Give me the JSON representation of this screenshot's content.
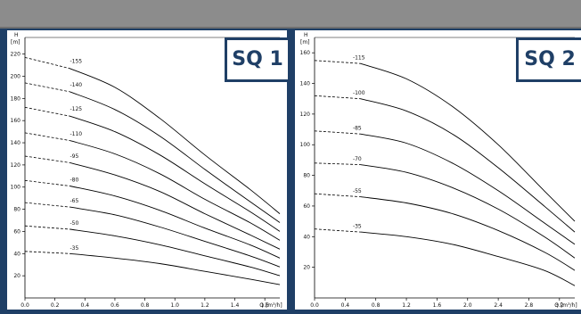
{
  "colors": {
    "header": "#8c8c8c",
    "frame": "#1f3f66",
    "badge_border": "#1f3f66",
    "curve": "#000000"
  },
  "chart_data": [
    {
      "type": "line",
      "title": "SQ 1",
      "ylabel_symbol": "H",
      "ylabel_unit": "[m]",
      "xlabel": "Q [m³/h]",
      "xlim": [
        0.0,
        1.7
      ],
      "ylim": [
        0,
        235
      ],
      "xticks": [
        "0.0",
        "0.2",
        "0.4",
        "0.6",
        "0.8",
        "1.0",
        "1.2",
        "1.4",
        "1.6"
      ],
      "yticks": [
        "20",
        "40",
        "60",
        "80",
        "100",
        "120",
        "140",
        "160",
        "180",
        "200",
        "220"
      ],
      "series": [
        {
          "name": "-155",
          "x": [
            0.0,
            0.3,
            0.6,
            0.9,
            1.2,
            1.5,
            1.7
          ],
          "y": [
            217,
            207,
            190,
            162,
            129,
            98,
            76
          ]
        },
        {
          "name": "-140",
          "x": [
            0.0,
            0.3,
            0.6,
            0.9,
            1.2,
            1.5,
            1.7
          ],
          "y": [
            194,
            186,
            170,
            146,
            116,
            87,
            68
          ]
        },
        {
          "name": "-125",
          "x": [
            0.0,
            0.3,
            0.6,
            0.9,
            1.2,
            1.5,
            1.7
          ],
          "y": [
            172,
            164,
            150,
            129,
            103,
            78,
            60
          ]
        },
        {
          "name": "-110",
          "x": [
            0.0,
            0.3,
            0.6,
            0.9,
            1.2,
            1.5,
            1.7
          ],
          "y": [
            149,
            142,
            130,
            112,
            89,
            68,
            52
          ]
        },
        {
          "name": "-95",
          "x": [
            0.0,
            0.3,
            0.6,
            0.9,
            1.2,
            1.5,
            1.7
          ],
          "y": [
            128,
            122,
            111,
            96,
            76,
            57,
            44
          ]
        },
        {
          "name": "-80",
          "x": [
            0.0,
            0.3,
            0.6,
            0.9,
            1.2,
            1.5,
            1.7
          ],
          "y": [
            106,
            101,
            92,
            79,
            63,
            48,
            36
          ]
        },
        {
          "name": "-65",
          "x": [
            0.0,
            0.3,
            0.6,
            0.9,
            1.2,
            1.5,
            1.7
          ],
          "y": [
            86,
            82,
            75,
            64,
            51,
            38,
            28
          ]
        },
        {
          "name": "-50",
          "x": [
            0.0,
            0.3,
            0.6,
            0.9,
            1.2,
            1.5,
            1.7
          ],
          "y": [
            65,
            62,
            56,
            48,
            38,
            28,
            20
          ]
        },
        {
          "name": "-35",
          "x": [
            0.0,
            0.3,
            0.6,
            0.9,
            1.2,
            1.5,
            1.7
          ],
          "y": [
            42,
            40,
            36,
            31,
            24,
            17,
            12
          ]
        }
      ]
    },
    {
      "type": "line",
      "title": "SQ 2",
      "ylabel_symbol": "H",
      "ylabel_unit": "[m]",
      "xlabel": "Q [m³/h]",
      "xlim": [
        0.0,
        3.4
      ],
      "ylim": [
        0,
        170
      ],
      "xticks": [
        "0.0",
        "0.4",
        "0.8",
        "1.2",
        "1.6",
        "2.0",
        "2.4",
        "2.8",
        "3.2"
      ],
      "yticks": [
        "20",
        "40",
        "60",
        "80",
        "100",
        "120",
        "140",
        "160"
      ],
      "series": [
        {
          "name": "-115",
          "x": [
            0.0,
            0.6,
            1.2,
            1.8,
            2.4,
            3.0,
            3.4
          ],
          "y": [
            155,
            153,
            143,
            125,
            100,
            70,
            50
          ]
        },
        {
          "name": "-100",
          "x": [
            0.0,
            0.6,
            1.2,
            1.8,
            2.4,
            3.0,
            3.4
          ],
          "y": [
            132,
            130,
            122,
            107,
            85,
            60,
            43
          ]
        },
        {
          "name": "-85",
          "x": [
            0.0,
            0.6,
            1.2,
            1.8,
            2.4,
            3.0,
            3.4
          ],
          "y": [
            109,
            107,
            101,
            88,
            70,
            49,
            35
          ]
        },
        {
          "name": "-70",
          "x": [
            0.0,
            0.6,
            1.2,
            1.8,
            2.4,
            3.0,
            3.4
          ],
          "y": [
            88,
            87,
            82,
            72,
            58,
            40,
            26
          ]
        },
        {
          "name": "-55",
          "x": [
            0.0,
            0.6,
            1.2,
            1.8,
            2.4,
            3.0,
            3.4
          ],
          "y": [
            68,
            66,
            62,
            55,
            44,
            30,
            18
          ]
        },
        {
          "name": "-35",
          "x": [
            0.0,
            0.6,
            1.2,
            1.8,
            2.4,
            3.0,
            3.4
          ],
          "y": [
            45,
            43,
            40,
            35,
            27,
            18,
            8
          ]
        }
      ]
    }
  ]
}
